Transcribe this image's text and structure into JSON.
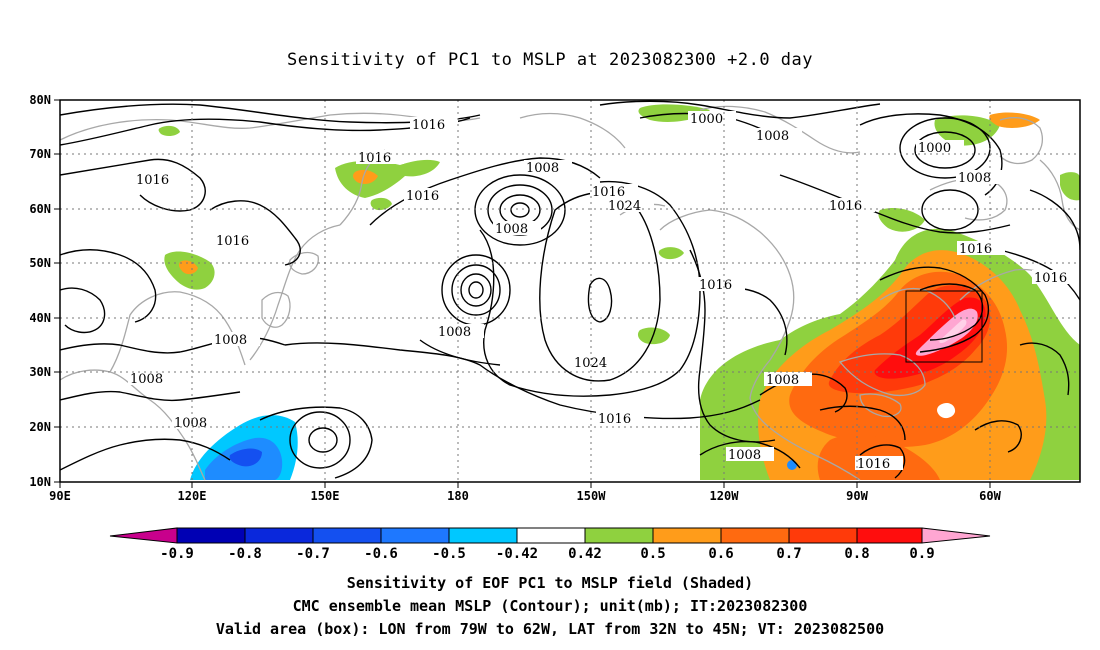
{
  "title": "Sensitivity of PC1 to MSLP at 2023082300 +2.0 day",
  "map": {
    "lat_labels": [
      "80N",
      "70N",
      "60N",
      "50N",
      "40N",
      "30N",
      "20N",
      "10N"
    ],
    "lon_labels": [
      "90E",
      "120E",
      "150E",
      "180",
      "150W",
      "120W",
      "90W",
      "60W"
    ],
    "contour_labels": [
      "1016",
      "1000",
      "1008",
      "1016",
      "1008",
      "1016",
      "1016",
      "1008",
      "1016",
      "1024",
      "1016",
      "1000",
      "1016",
      "1008",
      "1008",
      "1008",
      "1016",
      "1008",
      "1016",
      "1024",
      "1016",
      "1008",
      "1008",
      "1008"
    ],
    "colors": {
      "land_outline": "#a8a8a8",
      "contour": "#000000",
      "green": "#8fd13f",
      "orange": "#ff9c1a",
      "dark_orange": "#ff6a10",
      "red_orange": "#ff3a0a",
      "red": "#ff0d0d",
      "pink": "#ffa6d2",
      "light_blue": "#00c8ff",
      "blue": "#1e8cff"
    }
  },
  "colorbar": {
    "ticks": [
      "-0.9",
      "-0.8",
      "-0.7",
      "-0.6",
      "-0.5",
      "-0.42",
      "0.42",
      "0.5",
      "0.6",
      "0.7",
      "0.8",
      "0.9"
    ],
    "colors": [
      "#c8008c",
      "#0000b4",
      "#0a28dc",
      "#1450f0",
      "#1e78ff",
      "#00c8ff",
      "#ffffff",
      "#8fd13f",
      "#ff9c1a",
      "#ff6a10",
      "#ff3a0a",
      "#ff0d0d",
      "#ffa6d2"
    ]
  },
  "captions": {
    "line1": "Sensitivity of EOF PC1 to MSLP field (Shaded)",
    "line2": "CMC ensemble mean MSLP (Contour); unit(mb); IT:2023082300",
    "line3": "Valid area (box): LON from 79W to 62W, LAT from 32N to 45N; VT: 2023082500"
  }
}
